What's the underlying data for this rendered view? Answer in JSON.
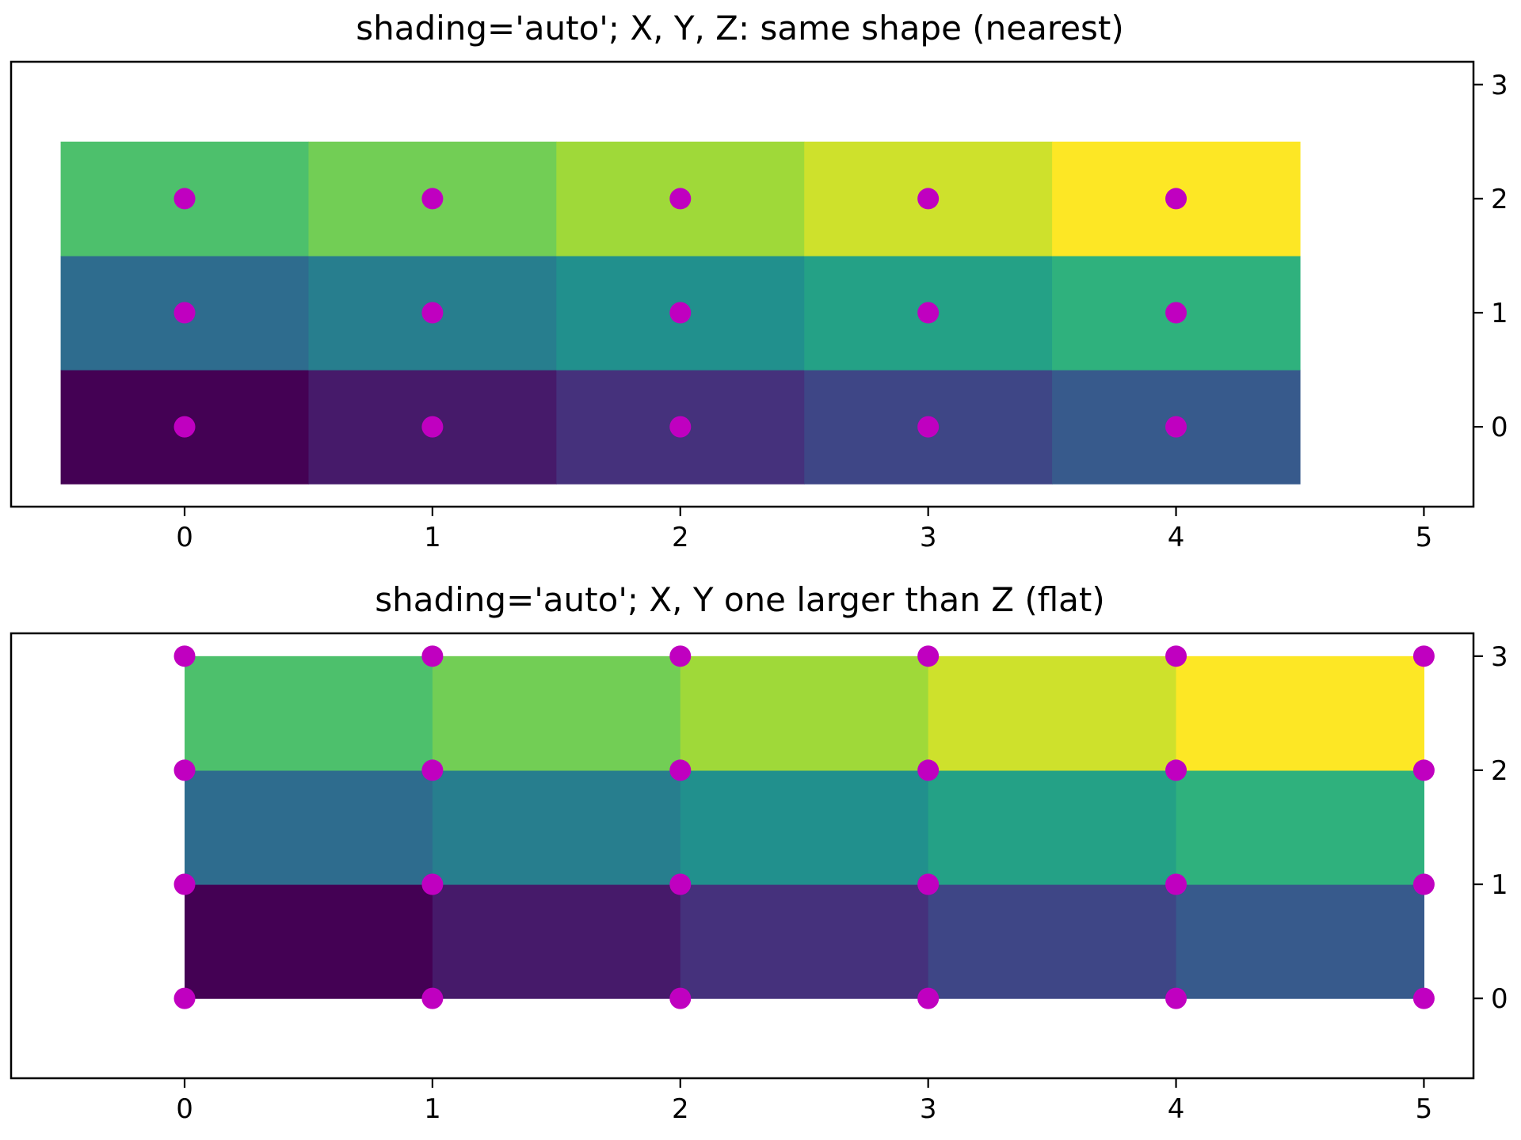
{
  "chart_data": [
    {
      "type": "heatmap",
      "title": "shading='auto'; X, Y, Z: same shape (nearest)",
      "shading": "nearest",
      "colormap": "viridis",
      "xlim": [
        -0.7,
        5.2
      ],
      "ylim": [
        -0.7,
        3.2
      ],
      "xticks": [
        0,
        1,
        2,
        3,
        4,
        5
      ],
      "yticks": [
        0,
        1,
        2,
        3
      ],
      "ytick_side": "right",
      "x": [
        0,
        1,
        2,
        3,
        4
      ],
      "y": [
        0,
        1,
        2
      ],
      "z": [
        [
          0,
          1,
          2,
          3,
          4
        ],
        [
          5,
          6,
          7,
          8,
          9
        ],
        [
          10,
          11,
          12,
          13,
          14
        ]
      ],
      "zlim": [
        0,
        14
      ],
      "markers": {
        "color": "#c000c0",
        "points": [
          [
            0,
            0
          ],
          [
            1,
            0
          ],
          [
            2,
            0
          ],
          [
            3,
            0
          ],
          [
            4,
            0
          ],
          [
            0,
            1
          ],
          [
            1,
            1
          ],
          [
            2,
            1
          ],
          [
            3,
            1
          ],
          [
            4,
            1
          ],
          [
            0,
            2
          ],
          [
            1,
            2
          ],
          [
            2,
            2
          ],
          [
            3,
            2
          ],
          [
            4,
            2
          ]
        ]
      },
      "grid": false
    },
    {
      "type": "heatmap",
      "title": "shading='auto'; X, Y one larger than Z (flat)",
      "shading": "flat",
      "colormap": "viridis",
      "xlim": [
        -0.7,
        5.2
      ],
      "ylim": [
        -0.7,
        3.2
      ],
      "xticks": [
        0,
        1,
        2,
        3,
        4,
        5
      ],
      "yticks": [
        0,
        1,
        2,
        3
      ],
      "ytick_side": "right",
      "x": [
        0,
        1,
        2,
        3,
        4,
        5
      ],
      "y": [
        0,
        1,
        2,
        3
      ],
      "z": [
        [
          0,
          1,
          2,
          3,
          4
        ],
        [
          5,
          6,
          7,
          8,
          9
        ],
        [
          10,
          11,
          12,
          13,
          14
        ]
      ],
      "zlim": [
        0,
        14
      ],
      "markers": {
        "color": "#c000c0",
        "points": [
          [
            0,
            0
          ],
          [
            1,
            0
          ],
          [
            2,
            0
          ],
          [
            3,
            0
          ],
          [
            4,
            0
          ],
          [
            5,
            0
          ],
          [
            0,
            1
          ],
          [
            1,
            1
          ],
          [
            2,
            1
          ],
          [
            3,
            1
          ],
          [
            4,
            1
          ],
          [
            5,
            1
          ],
          [
            0,
            2
          ],
          [
            1,
            2
          ],
          [
            2,
            2
          ],
          [
            3,
            2
          ],
          [
            4,
            2
          ],
          [
            5,
            2
          ],
          [
            0,
            3
          ],
          [
            1,
            3
          ],
          [
            2,
            3
          ],
          [
            3,
            3
          ],
          [
            4,
            3
          ],
          [
            5,
            3
          ]
        ]
      },
      "grid": false
    }
  ]
}
